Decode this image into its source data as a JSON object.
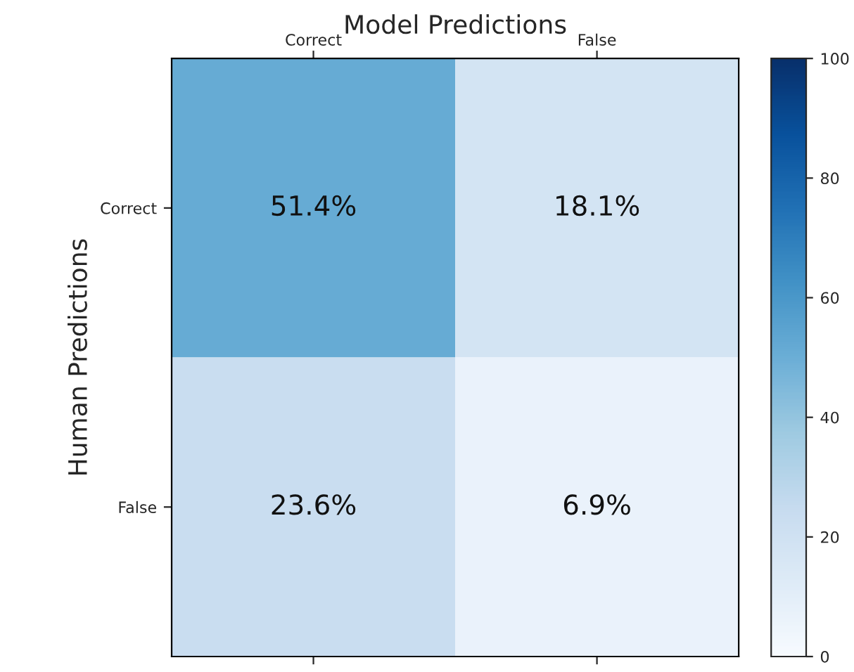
{
  "chart_data": {
    "type": "heatmap",
    "xlabel": "Model Predictions",
    "ylabel": "Human Predictions",
    "categories": [
      "Correct",
      "False"
    ],
    "y_categories": [
      "Correct",
      "False"
    ],
    "cells": [
      [
        51.4,
        18.1
      ],
      [
        23.6,
        6.9
      ]
    ],
    "cell_labels": [
      [
        "51.4%",
        "18.1%"
      ],
      [
        "23.6%",
        "6.9%"
      ]
    ],
    "clim": [
      0,
      100
    ],
    "cticks": [
      0,
      20,
      40,
      60,
      80,
      100
    ]
  }
}
